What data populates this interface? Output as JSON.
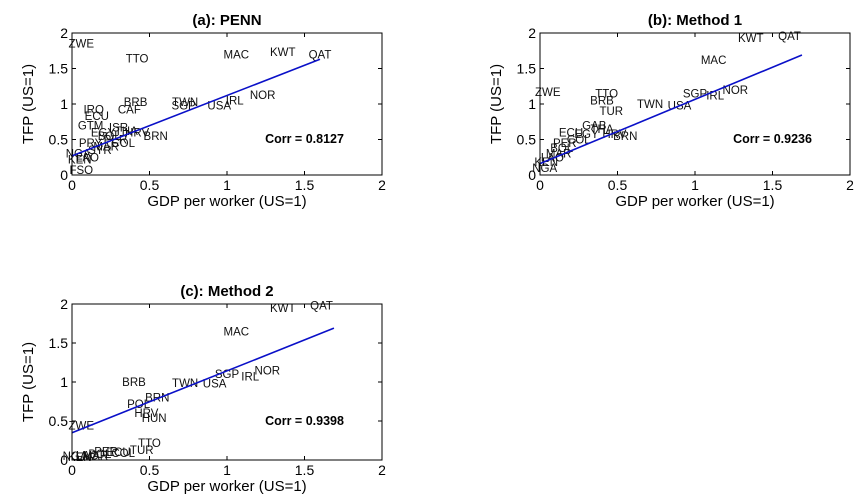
{
  "chart_data": [
    {
      "type": "scatter",
      "title": "(a): PENN",
      "xlabel": "GDP per worker (US=1)",
      "ylabel": "TFP (US=1)",
      "xlim": [
        0,
        2
      ],
      "ylim": [
        0,
        2
      ],
      "xticks": [
        "0",
        "0.5",
        "1",
        "1.5",
        "2"
      ],
      "yticks": [
        "0",
        "0.5",
        "1",
        "1.5",
        "2"
      ],
      "annotation": "Corr = 0.8127",
      "fit_line": {
        "x": [
          0,
          1.6
        ],
        "y": [
          0.27,
          1.63
        ]
      },
      "points": [
        {
          "label": "ZWE",
          "x": 0.06,
          "y": 1.85
        },
        {
          "label": "TTO",
          "x": 0.42,
          "y": 1.64
        },
        {
          "label": "MAC",
          "x": 1.06,
          "y": 1.7
        },
        {
          "label": "KWT",
          "x": 1.36,
          "y": 1.73
        },
        {
          "label": "QAT",
          "x": 1.6,
          "y": 1.7
        },
        {
          "label": "NOR",
          "x": 1.23,
          "y": 1.13
        },
        {
          "label": "IRL",
          "x": 1.05,
          "y": 1.05
        },
        {
          "label": "TWN",
          "x": 0.73,
          "y": 1.03
        },
        {
          "label": "USA",
          "x": 0.95,
          "y": 0.98
        },
        {
          "label": "BRB",
          "x": 0.41,
          "y": 1.03
        },
        {
          "label": "SGP",
          "x": 0.72,
          "y": 0.98
        },
        {
          "label": "IRQ",
          "x": 0.14,
          "y": 0.92
        },
        {
          "label": "CAF",
          "x": 0.37,
          "y": 0.92
        },
        {
          "label": "ECU",
          "x": 0.16,
          "y": 0.83
        },
        {
          "label": "GTM",
          "x": 0.12,
          "y": 0.7
        },
        {
          "label": "ISR",
          "x": 0.3,
          "y": 0.67
        },
        {
          "label": "FSO",
          "x": 0.06,
          "y": 0.07
        },
        {
          "label": "HRV",
          "x": 0.42,
          "y": 0.6
        },
        {
          "label": "BRN",
          "x": 0.54,
          "y": 0.55
        },
        {
          "label": "PRY",
          "x": 0.12,
          "y": 0.45
        },
        {
          "label": "MAR",
          "x": 0.22,
          "y": 0.4
        },
        {
          "label": "NGA",
          "x": 0.04,
          "y": 0.3
        },
        {
          "label": "KEN",
          "x": 0.05,
          "y": 0.22
        },
        {
          "label": "LAO",
          "x": 0.1,
          "y": 0.25
        },
        {
          "label": "BOL",
          "x": 0.24,
          "y": 0.55
        },
        {
          "label": "PER",
          "x": 0.28,
          "y": 0.5
        },
        {
          "label": "COL",
          "x": 0.33,
          "y": 0.45
        },
        {
          "label": "SYR",
          "x": 0.18,
          "y": 0.35
        },
        {
          "label": "EGY",
          "x": 0.2,
          "y": 0.6
        },
        {
          "label": "THA",
          "x": 0.35,
          "y": 0.62
        }
      ]
    },
    {
      "type": "scatter",
      "title": "(b): Method 1",
      "xlabel": "GDP per worker (US=1)",
      "ylabel": "TFP (US=1)",
      "xlim": [
        0,
        2
      ],
      "ylim": [
        0,
        2
      ],
      "xticks": [
        "0",
        "0.5",
        "1",
        "1.5",
        "2"
      ],
      "yticks": [
        "0",
        "0.5",
        "1",
        "1.5",
        "2"
      ],
      "annotation": "Corr = 0.9236",
      "fit_line": {
        "x": [
          0,
          1.69
        ],
        "y": [
          0.16,
          1.69
        ]
      },
      "points": [
        {
          "label": "KWT",
          "x": 1.36,
          "y": 1.93
        },
        {
          "label": "QAT",
          "x": 1.61,
          "y": 1.96
        },
        {
          "label": "MAC",
          "x": 1.12,
          "y": 1.62
        },
        {
          "label": "ZWE",
          "x": 0.05,
          "y": 1.17
        },
        {
          "label": "TTO",
          "x": 0.43,
          "y": 1.15
        },
        {
          "label": "BRB",
          "x": 0.4,
          "y": 1.05
        },
        {
          "label": "NOR",
          "x": 1.26,
          "y": 1.2
        },
        {
          "label": "IRL",
          "x": 1.13,
          "y": 1.12
        },
        {
          "label": "SGP",
          "x": 1.0,
          "y": 1.15
        },
        {
          "label": "USA",
          "x": 0.9,
          "y": 0.98
        },
        {
          "label": "TWN",
          "x": 0.71,
          "y": 1.0
        },
        {
          "label": "TUR",
          "x": 0.46,
          "y": 0.9
        },
        {
          "label": "HRV",
          "x": 0.48,
          "y": 0.58
        },
        {
          "label": "BRN",
          "x": 0.55,
          "y": 0.55
        },
        {
          "label": "GAB",
          "x": 0.35,
          "y": 0.7
        },
        {
          "label": "ECU",
          "x": 0.2,
          "y": 0.6
        },
        {
          "label": "PER",
          "x": 0.16,
          "y": 0.45
        },
        {
          "label": "COL",
          "x": 0.25,
          "y": 0.5
        },
        {
          "label": "MAR",
          "x": 0.12,
          "y": 0.3
        },
        {
          "label": "KEN",
          "x": 0.04,
          "y": 0.18
        },
        {
          "label": "NGA",
          "x": 0.03,
          "y": 0.1
        },
        {
          "label": "LAO",
          "x": 0.08,
          "y": 0.25
        },
        {
          "label": "BOL",
          "x": 0.14,
          "y": 0.38
        },
        {
          "label": "EGY",
          "x": 0.3,
          "y": 0.58
        },
        {
          "label": "THA",
          "x": 0.4,
          "y": 0.65
        }
      ]
    },
    {
      "type": "scatter",
      "title": "(c): Method 2",
      "xlabel": "GDP per worker (US=1)",
      "ylabel": "TFP (US=1)",
      "xlim": [
        0,
        2
      ],
      "ylim": [
        0,
        2
      ],
      "xticks": [
        "0",
        "0.5",
        "1",
        "1.5",
        "2"
      ],
      "yticks": [
        "0",
        "0.5",
        "1",
        "1.5",
        "2"
      ],
      "annotation": "Corr = 0.9398",
      "fit_line": {
        "x": [
          0,
          1.69
        ],
        "y": [
          0.35,
          1.69
        ]
      },
      "points": [
        {
          "label": "KWT",
          "x": 1.36,
          "y": 1.95
        },
        {
          "label": "QAT",
          "x": 1.61,
          "y": 1.98
        },
        {
          "label": "MAC",
          "x": 1.06,
          "y": 1.65
        },
        {
          "label": "NOR",
          "x": 1.26,
          "y": 1.15
        },
        {
          "label": "IRL",
          "x": 1.15,
          "y": 1.07
        },
        {
          "label": "SGP",
          "x": 1.0,
          "y": 1.1
        },
        {
          "label": "USA",
          "x": 0.92,
          "y": 0.98
        },
        {
          "label": "TWN",
          "x": 0.73,
          "y": 0.99
        },
        {
          "label": "BRB",
          "x": 0.4,
          "y": 1.0
        },
        {
          "label": "POL",
          "x": 0.43,
          "y": 0.72
        },
        {
          "label": "HRV",
          "x": 0.48,
          "y": 0.6
        },
        {
          "label": "HUN",
          "x": 0.53,
          "y": 0.54
        },
        {
          "label": "ZWE",
          "x": 0.06,
          "y": 0.44
        },
        {
          "label": "TTO",
          "x": 0.5,
          "y": 0.22
        },
        {
          "label": "TUR",
          "x": 0.45,
          "y": 0.13
        },
        {
          "label": "BRN",
          "x": 0.55,
          "y": 0.8
        },
        {
          "label": "ECU",
          "x": 0.3,
          "y": 0.1
        },
        {
          "label": "PER",
          "x": 0.22,
          "y": 0.11
        },
        {
          "label": "COL",
          "x": 0.33,
          "y": 0.09
        },
        {
          "label": "MAR",
          "x": 0.15,
          "y": 0.06
        },
        {
          "label": "KEN",
          "x": 0.05,
          "y": 0.04
        },
        {
          "label": "NGA",
          "x": 0.02,
          "y": 0.05
        },
        {
          "label": "LAO",
          "x": 0.1,
          "y": 0.06
        },
        {
          "label": "BOL",
          "x": 0.18,
          "y": 0.08
        }
      ]
    }
  ]
}
